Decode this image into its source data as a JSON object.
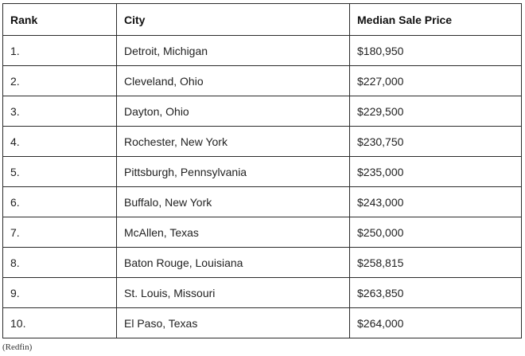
{
  "table": {
    "headers": [
      "Rank",
      "City",
      "Median Sale Price"
    ],
    "rows": [
      {
        "rank": "1.",
        "city": "Detroit, Michigan",
        "price": "$180,950"
      },
      {
        "rank": "2.",
        "city": "Cleveland, Ohio",
        "price": "$227,000"
      },
      {
        "rank": "3.",
        "city": "Dayton, Ohio",
        "price": "$229,500"
      },
      {
        "rank": "4.",
        "city": "Rochester, New York",
        "price": "$230,750"
      },
      {
        "rank": "5.",
        "city": "Pittsburgh, Pennsylvania",
        "price": "$235,000"
      },
      {
        "rank": "6.",
        "city": "Buffalo, New York",
        "price": "$243,000"
      },
      {
        "rank": "7.",
        "city": "McAllen, Texas",
        "price": "$250,000"
      },
      {
        "rank": "8.",
        "city": "Baton Rouge, Louisiana",
        "price": "$258,815"
      },
      {
        "rank": "9.",
        "city": "St. Louis, Missouri",
        "price": "$263,850"
      },
      {
        "rank": "10.",
        "city": "El Paso, Texas",
        "price": "$264,000"
      }
    ]
  },
  "source": "(Redfin)"
}
